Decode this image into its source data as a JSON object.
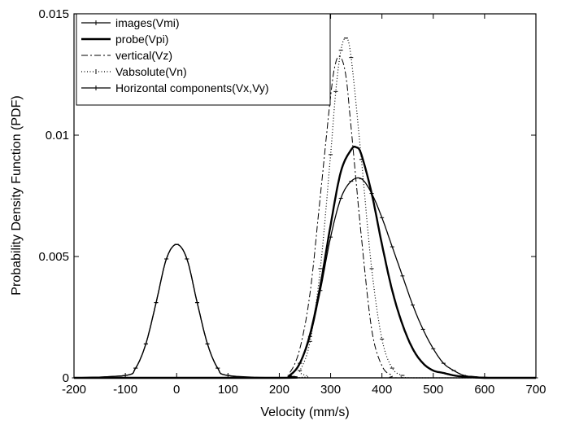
{
  "chart_data": {
    "type": "line",
    "title": "",
    "xlabel": "Velocity (mm/s)",
    "ylabel": "Probability Density Function  (PDF)",
    "xlim": [
      -200,
      700
    ],
    "ylim": [
      0,
      0.015
    ],
    "x_ticks": [
      -200,
      -100,
      0,
      100,
      200,
      300,
      400,
      500,
      600,
      700
    ],
    "x_tick_labels": [
      "-200",
      "-100",
      "0",
      "100",
      "200",
      "300",
      "400",
      "500",
      "600",
      "700"
    ],
    "y_ticks": [
      0,
      0.005,
      0.01,
      0.015
    ],
    "y_tick_labels": [
      "0",
      "0.005",
      "0.01",
      "0.015"
    ],
    "grid": false,
    "legend_position": "top-left",
    "series": [
      {
        "name": "images(Vmi)",
        "style": "solid-marker",
        "color": "#000000",
        "x": [
          -200,
          -100,
          -80,
          -60,
          -40,
          -20,
          0,
          20,
          40,
          60,
          80,
          100,
          200,
          220,
          240,
          260,
          280,
          300,
          320,
          340,
          360,
          380,
          400,
          420,
          440,
          460,
          480,
          500,
          520,
          540,
          560,
          580,
          600,
          650,
          700
        ],
        "y": [
          0,
          0.0001,
          0.0004,
          0.0014,
          0.0031,
          0.0049,
          0.0055,
          0.0049,
          0.0031,
          0.0014,
          0.0004,
          0.0001,
          0,
          0.0001,
          0.0006,
          0.0017,
          0.0036,
          0.0058,
          0.0074,
          0.0081,
          0.0082,
          0.0076,
          0.0066,
          0.0054,
          0.0042,
          0.003,
          0.002,
          0.0012,
          0.0006,
          0.0003,
          0.0001,
          5e-05,
          2e-05,
          0,
          0
        ]
      },
      {
        "name": "probe(Vpi)",
        "style": "solid-thick",
        "color": "#000000",
        "x": [
          -200,
          200,
          220,
          240,
          260,
          280,
          300,
          320,
          340,
          350,
          360,
          380,
          400,
          420,
          440,
          460,
          480,
          500,
          520,
          540,
          560,
          600,
          650,
          700
        ],
        "y": [
          0,
          0,
          0.0001,
          0.0006,
          0.0018,
          0.0038,
          0.0063,
          0.0085,
          0.0094,
          0.0095,
          0.0092,
          0.0076,
          0.0055,
          0.0036,
          0.0022,
          0.0012,
          0.0006,
          0.0003,
          0.0002,
          0.0001,
          5e-05,
          0,
          0,
          0
        ]
      },
      {
        "name": "vertical(Vz)",
        "style": "dash-dot",
        "color": "#000000",
        "x": [
          -200,
          200,
          220,
          240,
          260,
          280,
          300,
          310,
          320,
          330,
          340,
          360,
          380,
          400,
          420,
          440,
          700
        ],
        "y": [
          0,
          0,
          0.0002,
          0.0012,
          0.0035,
          0.0075,
          0.0116,
          0.013,
          0.0132,
          0.0124,
          0.0103,
          0.0058,
          0.002,
          0.0005,
          0.0001,
          0,
          0
        ]
      },
      {
        "name": "Vabsolute(Vn)",
        "style": "dotted-marker",
        "color": "#000000",
        "x": [
          -200,
          220,
          240,
          260,
          280,
          300,
          310,
          320,
          330,
          340,
          360,
          380,
          400,
          420,
          440,
          460,
          700
        ],
        "y": [
          0,
          0,
          0.0003,
          0.0015,
          0.0045,
          0.0092,
          0.0118,
          0.0135,
          0.014,
          0.0132,
          0.009,
          0.0045,
          0.0016,
          0.0004,
          0.0001,
          0,
          0
        ]
      },
      {
        "name": "Horizontal components(Vx,Vy)",
        "style": "solid-marker",
        "color": "#000000",
        "x": [
          -200,
          -100,
          -80,
          -60,
          -40,
          -20,
          0,
          20,
          40,
          60,
          80,
          100,
          200,
          700
        ],
        "y": [
          0,
          0.0001,
          0.0004,
          0.0014,
          0.0031,
          0.0049,
          0.0055,
          0.0049,
          0.0031,
          0.0014,
          0.0004,
          0.0001,
          0,
          0
        ]
      }
    ]
  }
}
